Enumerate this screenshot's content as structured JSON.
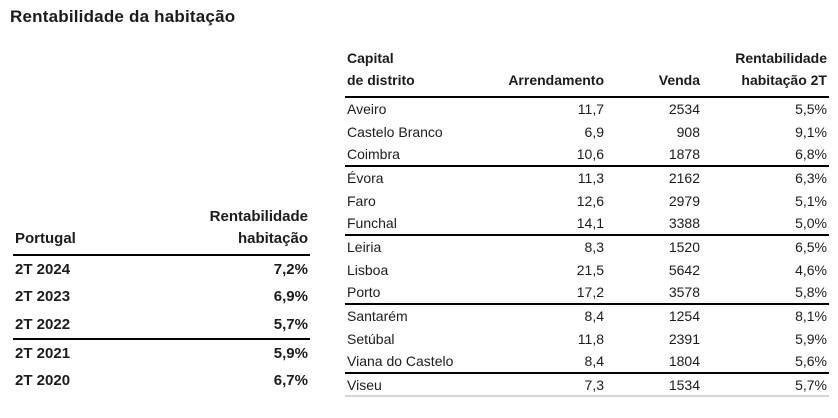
{
  "page_title": "Rentabilidade da habitação",
  "colors": {
    "text": "#1c1c1c",
    "strong_border": "#000000",
    "faint_border": "#d6d6d6",
    "background": "#ffffff"
  },
  "portugal_table": {
    "header": {
      "col_period": "Portugal",
      "col_value_line1": "Rentabilidade",
      "col_value_line2": "habitação"
    },
    "rows": [
      {
        "period": "2T 2024",
        "value": "7,2%"
      },
      {
        "period": "2T 2023",
        "value": "6,9%"
      },
      {
        "period": "2T 2022",
        "value": "5,7%"
      },
      {
        "period": "2T 2021",
        "value": "5,9%"
      },
      {
        "period": "2T 2020",
        "value": "6,7%"
      }
    ]
  },
  "district_table": {
    "header": {
      "col_name_line1": "Capital",
      "col_name_line2": "de distrito",
      "col_arrendamento": "Arrendamento",
      "col_venda": "Venda",
      "col_rentabilidade_line1": "Rentabilidade",
      "col_rentabilidade_line2": "habitação 2T"
    },
    "rows": [
      {
        "name": "Aveiro",
        "arrendamento": "11,7",
        "venda": "2534",
        "rentabilidade": "5,5%"
      },
      {
        "name": "Castelo Branco",
        "arrendamento": "6,9",
        "venda": "908",
        "rentabilidade": "9,1%"
      },
      {
        "name": "Coimbra",
        "arrendamento": "10,6",
        "venda": "1878",
        "rentabilidade": "6,8%"
      },
      {
        "name": "Évora",
        "arrendamento": "11,3",
        "venda": "2162",
        "rentabilidade": "6,3%"
      },
      {
        "name": "Faro",
        "arrendamento": "12,6",
        "venda": "2979",
        "rentabilidade": "5,1%"
      },
      {
        "name": "Funchal",
        "arrendamento": "14,1",
        "venda": "3388",
        "rentabilidade": "5,0%"
      },
      {
        "name": "Leiria",
        "arrendamento": "8,3",
        "venda": "1520",
        "rentabilidade": "6,5%"
      },
      {
        "name": "Lisboa",
        "arrendamento": "21,5",
        "venda": "5642",
        "rentabilidade": "4,6%"
      },
      {
        "name": "Porto",
        "arrendamento": "17,2",
        "venda": "3578",
        "rentabilidade": "5,8%"
      },
      {
        "name": "Santarém",
        "arrendamento": "8,4",
        "venda": "1254",
        "rentabilidade": "8,1%"
      },
      {
        "name": "Setúbal",
        "arrendamento": "11,8",
        "venda": "2391",
        "rentabilidade": "5,9%"
      },
      {
        "name": "Viana do Castelo",
        "arrendamento": "8,4",
        "venda": "1804",
        "rentabilidade": "5,6%"
      },
      {
        "name": "Viseu",
        "arrendamento": "7,3",
        "venda": "1534",
        "rentabilidade": "5,7%"
      }
    ]
  }
}
